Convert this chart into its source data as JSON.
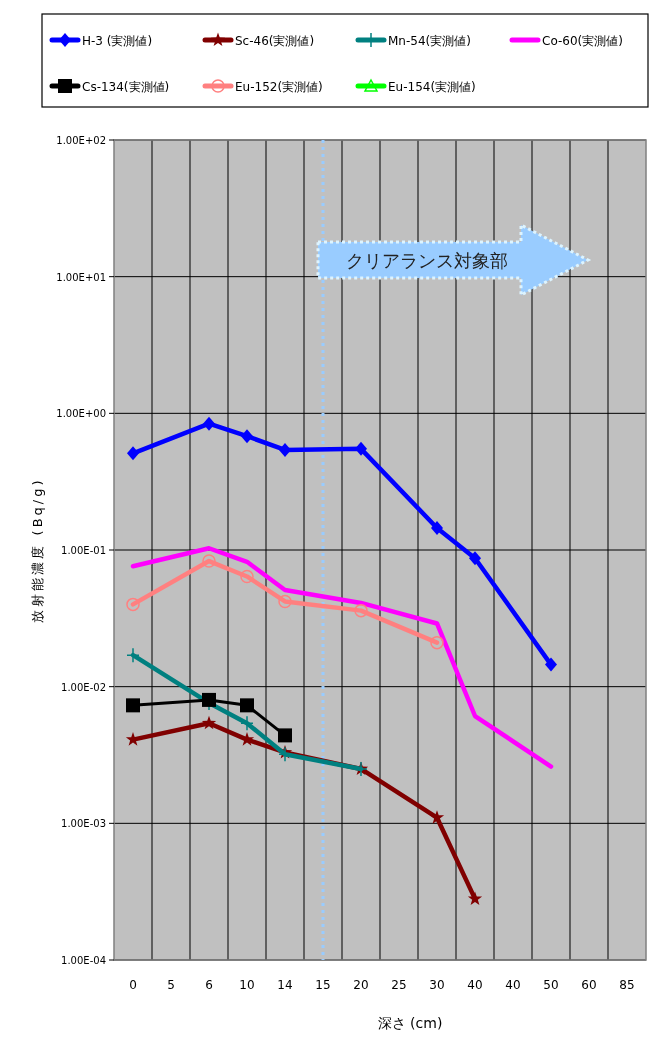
{
  "chart_data": {
    "type": "line",
    "xlabel": "深さ (cm)",
    "ylabel": "放射能濃度 (Bq/g)",
    "categories": [
      "0",
      "5",
      "6",
      "10",
      "14",
      "15",
      "20",
      "25",
      "30",
      "40",
      "40",
      "50",
      "60",
      "85"
    ],
    "log": true,
    "ylim": [
      0.0001,
      100
    ],
    "yticks": [
      {
        "value": 0.0001,
        "label": "1.00E-04"
      },
      {
        "value": 0.001,
        "label": "1.00E-03"
      },
      {
        "value": 0.01,
        "label": "1.00E-02"
      },
      {
        "value": 0.1,
        "label": "1.00E-01"
      },
      {
        "value": 1,
        "label": "1.00E+00"
      },
      {
        "value": 10,
        "label": "1.00E+01"
      },
      {
        "value": 100,
        "label": "1.00E+02"
      }
    ],
    "grid": true,
    "legend": "top",
    "series": [
      {
        "name": "H-3  (実測値)",
        "color": "#0000ff",
        "marker": "diamond",
        "values": [
          0.51,
          null,
          0.84,
          0.68,
          0.54,
          null,
          0.55,
          null,
          0.145,
          0.087,
          null,
          0.0145,
          null,
          null
        ]
      },
      {
        "name": "Sc-46(実測値)",
        "color": "#800000",
        "marker": "star",
        "values": [
          0.0041,
          null,
          0.0054,
          0.0041,
          0.0033,
          null,
          0.0025,
          null,
          0.0011,
          0.00028,
          null,
          null,
          null,
          null
        ]
      },
      {
        "name": "Mn-54(実測値)",
        "color": "#008080",
        "marker": "cross",
        "values": [
          0.017,
          null,
          0.0076,
          0.0054,
          0.0032,
          null,
          0.0025,
          null,
          null,
          null,
          null,
          null,
          null,
          null
        ]
      },
      {
        "name": "Co-60(実測値)",
        "color": "#ff00ff",
        "marker": "none",
        "values": [
          0.076,
          null,
          0.103,
          0.082,
          0.051,
          null,
          0.041,
          null,
          0.029,
          0.0061,
          null,
          0.0026,
          null,
          null
        ]
      },
      {
        "name": "Cs-134(実測値)",
        "color": "#000000",
        "marker": "square",
        "values": [
          0.0073,
          null,
          0.008,
          0.0073,
          0.0044,
          null,
          null,
          null,
          null,
          null,
          null,
          null,
          null,
          null
        ]
      },
      {
        "name": "Eu-152(実測値)",
        "color": "#ff8080",
        "marker": "circle",
        "values": [
          0.04,
          null,
          0.083,
          0.064,
          0.042,
          null,
          0.036,
          null,
          0.021,
          null,
          null,
          null,
          null,
          null
        ]
      },
      {
        "name": "Eu-154(実測値)",
        "color": "#00ff00",
        "marker": "triangle",
        "values": [
          null,
          null,
          null,
          null,
          null,
          null,
          null,
          null,
          null,
          null,
          null,
          null,
          null,
          null
        ]
      }
    ],
    "ref_lines": [
      {
        "axis": "x",
        "value": "15",
        "color": "#99ccff",
        "line_style": "dotted"
      }
    ],
    "annotations": [
      "クリアランス対象部"
    ]
  }
}
